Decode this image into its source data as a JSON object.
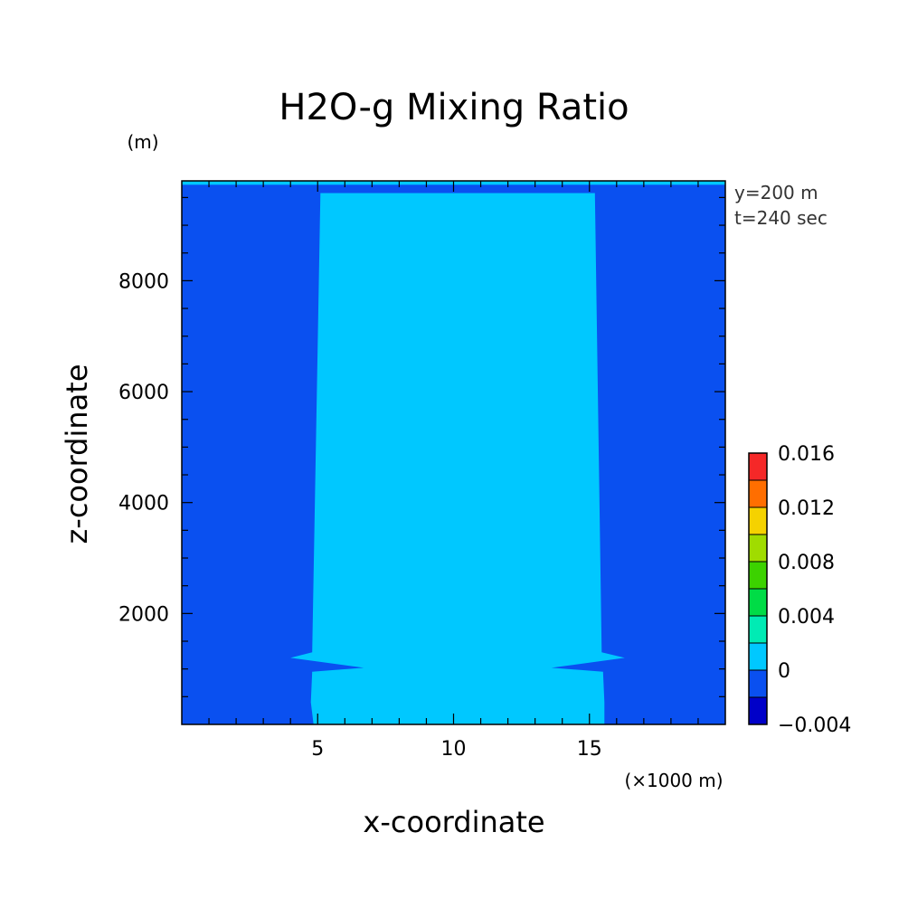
{
  "chart_data": {
    "type": "heatmap",
    "title": "H2O-g Mixing Ratio",
    "xlabel": "x-coordinate",
    "ylabel": "z-coordinate",
    "x_unit": "(×1000 m)",
    "y_unit": "(m)",
    "annotations": [
      "y=200 m",
      "t=240 sec"
    ],
    "xlim": [
      0,
      20
    ],
    "ylim": [
      0,
      9800
    ],
    "x_ticks": [
      5,
      10,
      15
    ],
    "x_tick_labels": [
      "5",
      "10",
      "15"
    ],
    "x_minor_step": 1,
    "y_ticks": [
      2000,
      4000,
      6000,
      8000
    ],
    "y_tick_labels": [
      "2000",
      "4000",
      "6000",
      "8000"
    ],
    "y_minor_step": 500,
    "background_band": {
      "range": [
        -0.002,
        0
      ],
      "color": "#0a50f0"
    },
    "fill_band": {
      "range": [
        0,
        0.002
      ],
      "color": "#00c8ff"
    },
    "plume_region": {
      "left_edge": [
        [
          4.85,
          0
        ],
        [
          4.75,
          400
        ],
        [
          4.8,
          950
        ],
        [
          6.7,
          1020
        ],
        [
          4.0,
          1200
        ],
        [
          4.8,
          1300
        ],
        [
          5.1,
          9580
        ]
      ],
      "right_edge": [
        [
          15.55,
          0
        ],
        [
          15.55,
          400
        ],
        [
          15.5,
          950
        ],
        [
          13.6,
          1020
        ],
        [
          16.3,
          1200
        ],
        [
          15.45,
          1300
        ],
        [
          15.2,
          9580
        ]
      ]
    },
    "top_band": {
      "z_range": [
        9730,
        9800
      ],
      "color": "#00c8ff"
    },
    "colorbar": {
      "levels": [
        -0.004,
        -0.002,
        0,
        0.002,
        0.004,
        0.006,
        0.008,
        0.01,
        0.012,
        0.014,
        0.016
      ],
      "colors": [
        "#0000c8",
        "#0a50f0",
        "#00c8ff",
        "#00ebb4",
        "#00dc46",
        "#3cd200",
        "#a0dc00",
        "#f5d200",
        "#ff6e00",
        "#f52828"
      ],
      "tick_values": [
        -0.004,
        0,
        0.004,
        0.008,
        0.012,
        0.016
      ],
      "tick_labels": [
        "−0.004",
        "0",
        "0.004",
        "0.008",
        "0.012",
        "0.016"
      ]
    }
  }
}
